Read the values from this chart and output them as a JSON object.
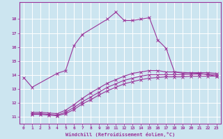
{
  "xlabel": "Windchill (Refroidissement éolien,°C)",
  "bg_color": "#cce5f0",
  "grid_color": "#ffffff",
  "line_color": "#993399",
  "xlim": [
    -0.5,
    23.5
  ],
  "ylim": [
    10.5,
    19.2
  ],
  "xticks": [
    0,
    1,
    2,
    3,
    4,
    5,
    6,
    7,
    8,
    9,
    10,
    11,
    12,
    13,
    14,
    15,
    16,
    17,
    18,
    19,
    20,
    21,
    22,
    23
  ],
  "yticks": [
    11,
    12,
    13,
    14,
    15,
    16,
    17,
    18
  ],
  "line1_x": [
    0,
    1,
    4,
    5,
    6,
    7,
    10,
    11,
    12,
    13,
    14,
    15,
    16,
    17,
    18,
    21,
    23
  ],
  "line1_y": [
    13.8,
    13.1,
    14.1,
    14.3,
    16.1,
    16.9,
    18.0,
    18.5,
    17.9,
    17.9,
    18.0,
    18.1,
    16.5,
    15.9,
    14.2,
    14.1,
    13.9
  ],
  "line2_x": [
    1,
    2,
    3,
    4,
    5,
    6,
    7,
    8,
    9,
    10,
    11,
    12,
    13,
    14,
    15,
    16,
    17,
    18,
    19,
    20,
    21,
    22,
    23
  ],
  "line2_y": [
    11.15,
    11.15,
    11.1,
    11.05,
    11.2,
    11.5,
    11.9,
    12.2,
    12.55,
    12.85,
    13.1,
    13.35,
    13.5,
    13.65,
    13.75,
    13.8,
    13.85,
    13.85,
    13.85,
    13.9,
    13.9,
    13.9,
    13.9
  ],
  "line3_x": [
    1,
    2,
    3,
    4,
    5,
    6,
    7,
    8,
    9,
    10,
    11,
    12,
    13,
    14,
    15,
    16,
    17,
    18,
    19,
    20,
    21,
    22,
    23
  ],
  "line3_y": [
    11.2,
    11.2,
    11.15,
    11.1,
    11.3,
    11.65,
    12.05,
    12.4,
    12.75,
    13.1,
    13.35,
    13.6,
    13.75,
    13.9,
    14.0,
    14.0,
    14.0,
    14.0,
    14.0,
    14.05,
    14.05,
    14.05,
    14.0
  ],
  "line4_x": [
    1,
    2,
    3,
    4,
    5,
    6,
    7,
    8,
    9,
    10,
    11,
    12,
    13,
    14,
    15,
    16,
    17,
    18,
    19,
    20,
    21,
    22,
    23
  ],
  "line4_y": [
    11.3,
    11.3,
    11.25,
    11.2,
    11.45,
    11.85,
    12.3,
    12.7,
    13.05,
    13.4,
    13.65,
    13.9,
    14.1,
    14.2,
    14.3,
    14.3,
    14.2,
    14.2,
    14.1,
    14.15,
    14.15,
    14.15,
    14.1
  ]
}
